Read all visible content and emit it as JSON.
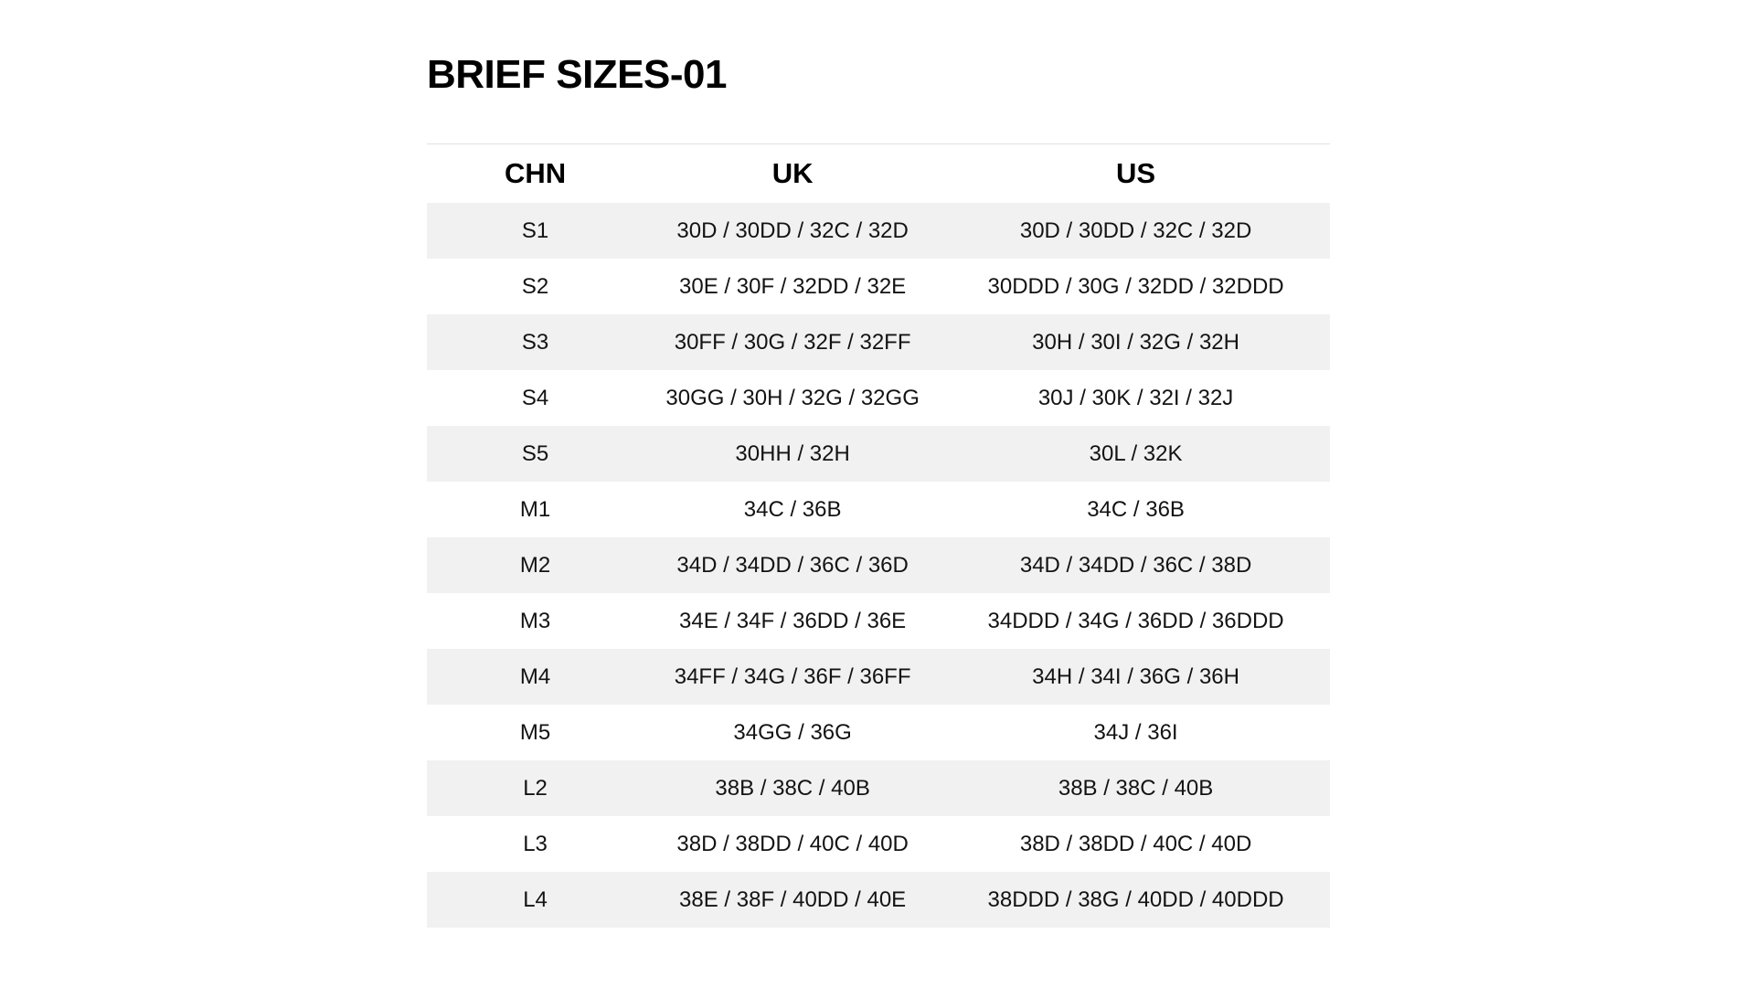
{
  "page": {
    "title": "BRIEF SIZES-01"
  },
  "colors": {
    "background": "#ffffff",
    "row_stripe": "#f1f1f1",
    "top_rule": "#e0e0e0",
    "heading_text": "#000000",
    "cell_text": "#131313"
  },
  "chart_data": {
    "type": "table",
    "title": "BRIEF SIZES-01",
    "columns": [
      "CHN",
      "UK",
      "US"
    ],
    "rows": [
      [
        "S1",
        "30D / 30DD / 32C / 32D",
        "30D / 30DD / 32C / 32D"
      ],
      [
        "S2",
        "30E / 30F / 32DD / 32E",
        "30DDD / 30G / 32DD / 32DDD"
      ],
      [
        "S3",
        "30FF / 30G / 32F / 32FF",
        "30H / 30I / 32G / 32H"
      ],
      [
        "S4",
        "30GG / 30H / 32G / 32GG",
        "30J / 30K / 32I / 32J"
      ],
      [
        "S5",
        "30HH / 32H",
        "30L / 32K"
      ],
      [
        "M1",
        "34C / 36B",
        "34C / 36B"
      ],
      [
        "M2",
        "34D / 34DD / 36C / 36D",
        "34D / 34DD / 36C / 38D"
      ],
      [
        "M3",
        "34E / 34F / 36DD / 36E",
        "34DDD / 34G / 36DD / 36DDD"
      ],
      [
        "M4",
        "34FF / 34G / 36F / 36FF",
        "34H / 34I / 36G / 36H"
      ],
      [
        "M5",
        "34GG / 36G",
        "34J / 36I"
      ],
      [
        "L2",
        "38B / 38C / 40B",
        "38B / 38C / 40B"
      ],
      [
        "L3",
        "38D / 38DD / 40C / 40D",
        "38D / 38DD / 40C / 40D"
      ],
      [
        "L4",
        "38E / 38F / 40DD / 40E",
        "38DDD / 38G / 40DD / 40DDD"
      ]
    ]
  }
}
